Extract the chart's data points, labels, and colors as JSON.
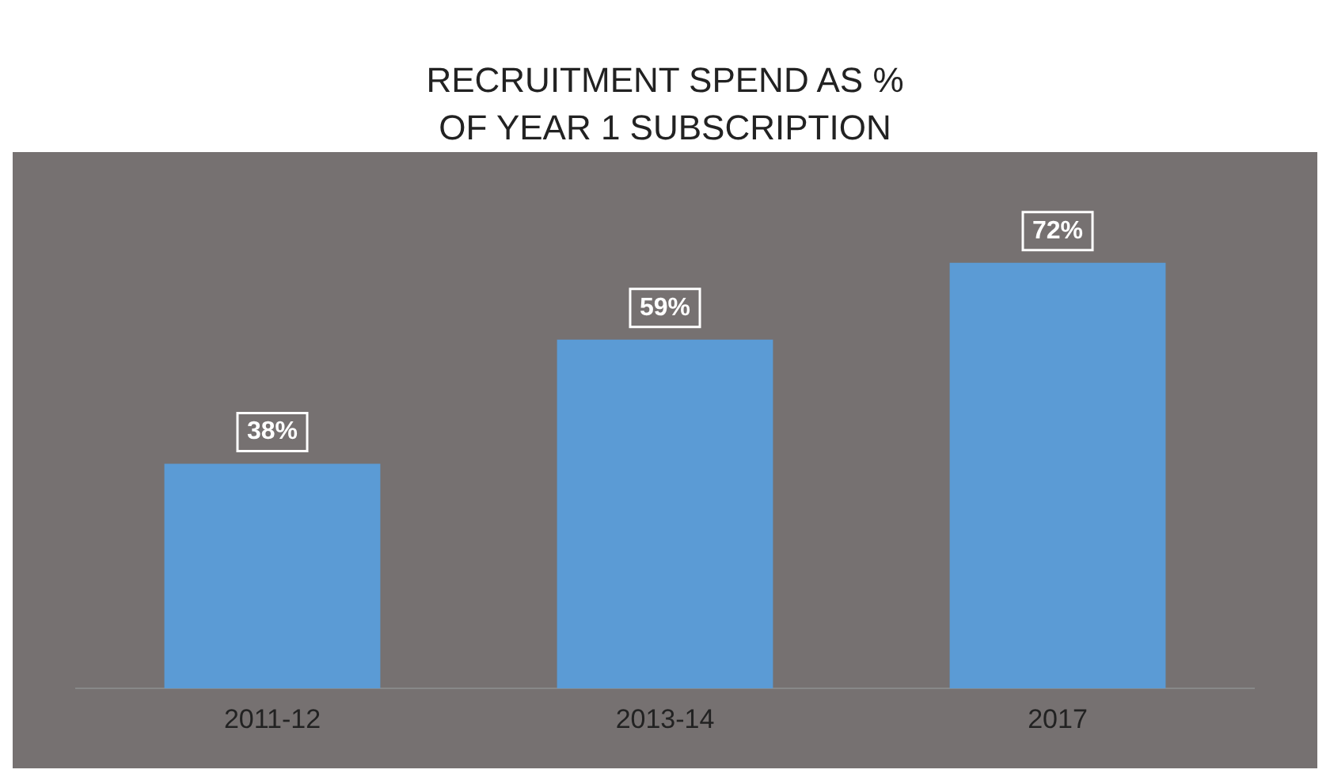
{
  "chart_data": {
    "type": "bar",
    "title": "RECRUITMENT SPEND AS % OF YEAR 1 SUBSCRIPTION",
    "categories": [
      "2011-12",
      "2013-14",
      "2017"
    ],
    "values": [
      38,
      59,
      72
    ],
    "value_labels": [
      "38%",
      "59%",
      "72%"
    ],
    "color": "#5b9bd5",
    "grid": false
  }
}
